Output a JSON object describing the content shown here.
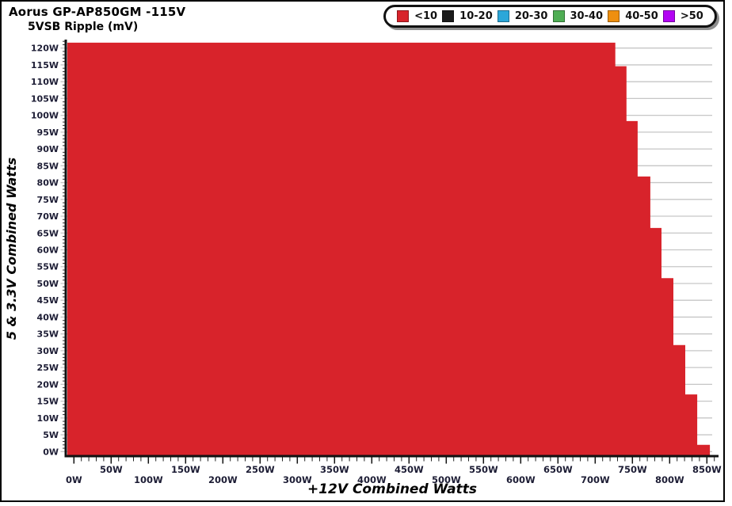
{
  "header": {
    "title": "Aorus GP-AP850GM -115V",
    "subtitle": "5VSB Ripple (mV)"
  },
  "legend": {
    "items": [
      {
        "label": "<10",
        "color": "#d8232b"
      },
      {
        "label": "10-20",
        "color": "#1b1b1b"
      },
      {
        "label": "20-30",
        "color": "#2ba7d9"
      },
      {
        "label": "30-40",
        "color": "#4fae54"
      },
      {
        "label": "40-50",
        "color": "#ee8f0f"
      },
      {
        "label": ">50",
        "color": "#b303f3"
      }
    ]
  },
  "chart_data": {
    "type": "area",
    "title": "Aorus GP-AP850GM -115V",
    "subtitle": "5VSB Ripple (mV)",
    "xlabel": "+12V Combined Watts",
    "ylabel": "5 & 3.3V Combined Watts",
    "grid": true,
    "legend_position": "top-right",
    "x_axis": {
      "min": 0,
      "max": 850,
      "major_step": 50,
      "minor_step": 10,
      "tick_labels": [
        "0W",
        "50W",
        "100W",
        "150W",
        "200W",
        "250W",
        "300W",
        "350W",
        "400W",
        "450W",
        "500W",
        "550W",
        "600W",
        "650W",
        "700W",
        "750W",
        "800W",
        "850W"
      ]
    },
    "y_axis": {
      "min": 0,
      "max": 120,
      "major_step": 5,
      "minor_step": 1,
      "tick_labels": [
        "0W",
        "5W",
        "10W",
        "15W",
        "20W",
        "25W",
        "30W",
        "35W",
        "40W",
        "45W",
        "50W",
        "55W",
        "60W",
        "65W",
        "70W",
        "75W",
        "80W",
        "85W",
        "90W",
        "95W",
        "100W",
        "105W",
        "110W",
        "115W",
        "120W"
      ]
    },
    "series": [
      {
        "name": "<10 mV ripple region",
        "ripple_range": "<10",
        "color": "#d8232b",
        "steps": [
          {
            "minor_rail_watts_from": 121.6,
            "minor_rail_watts_to": 114.6,
            "max_12v_watts": 727
          },
          {
            "minor_rail_watts_from": 114.6,
            "minor_rail_watts_to": 98.3,
            "max_12v_watts": 742
          },
          {
            "minor_rail_watts_from": 98.3,
            "minor_rail_watts_to": 81.8,
            "max_12v_watts": 757
          },
          {
            "minor_rail_watts_from": 81.8,
            "minor_rail_watts_to": 66.5,
            "max_12v_watts": 774
          },
          {
            "minor_rail_watts_from": 66.5,
            "minor_rail_watts_to": 51.6,
            "max_12v_watts": 789
          },
          {
            "minor_rail_watts_from": 51.6,
            "minor_rail_watts_to": 31.7,
            "max_12v_watts": 805
          },
          {
            "minor_rail_watts_from": 31.7,
            "minor_rail_watts_to": 17.0,
            "max_12v_watts": 821
          },
          {
            "minor_rail_watts_from": 17.0,
            "minor_rail_watts_to": 2.0,
            "max_12v_watts": 837
          },
          {
            "minor_rail_watts_from": 2.0,
            "minor_rail_watts_to": -1.2,
            "max_12v_watts": 854
          }
        ]
      }
    ]
  }
}
